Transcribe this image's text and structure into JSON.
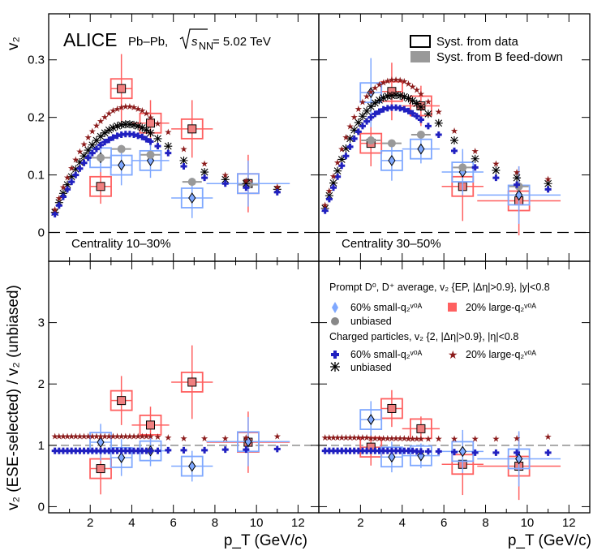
{
  "header": {
    "experiment": "ALICE",
    "system": "Pb–Pb,",
    "energy_sym": "s",
    "energy_sub": "NN",
    "energy_val": "= 5.02 TeV"
  },
  "legend_syst": {
    "data_label": "Syst. from data",
    "bfeed_label": "Syst. from B feed-down"
  },
  "legend_D": {
    "title": "Prompt D⁰, D⁺ average, v₂ {EP, |Δη|>0.9}, |y|<0.8",
    "small": "60% small-q₂ᵛ⁰ᴬ",
    "large": "20% large-q₂ᵛ⁰ᴬ",
    "unbiased": "unbiased"
  },
  "legend_ch": {
    "title": "Charged particles, v₂ {2, |Δη|>0.9}, |η|<0.8",
    "small": "60% small-q₂ᵛ⁰ᴬ",
    "large": "20% large-q₂ᵛ⁰ᴬ",
    "unbiased": "unbiased"
  },
  "axes": {
    "ylabel_top": "v₂",
    "ylabel_bottom": "v₂ (ESE-selected) / v₂ (unbiased)",
    "xlabel": "p_T (GeV/c)"
  },
  "colors": {
    "small": "#2020c0",
    "small_light": "#7fa8ff",
    "large": "#8b1a1a",
    "large_light": "#ff6060",
    "unbiased": "#000000",
    "gray": "#999999"
  },
  "chart_data": [
    {
      "type": "scatter",
      "panel": "top-left",
      "title": "Centrality 10–30%",
      "xlabel": "p_T (GeV/c)",
      "ylabel": "v2",
      "xlim": [
        0,
        13
      ],
      "ylim": [
        -0.05,
        0.38
      ],
      "xticks": [
        2,
        4,
        6,
        8,
        10,
        12
      ],
      "yticks": [
        0,
        0.1,
        0.2,
        0.3
      ],
      "series": [
        {
          "name": "D 20% large-q2",
          "x": [
            2.5,
            3.5,
            4.9,
            6.9,
            9.6
          ],
          "y": [
            0.08,
            0.25,
            0.19,
            0.18,
            0.085
          ],
          "yerr": [
            0.03,
            0.06,
            0.04,
            0.05,
            0.05
          ],
          "xerr": [
            0.5,
            0.5,
            0.9,
            1.0,
            2.0
          ]
        },
        {
          "name": "D 60% small-q2",
          "x": [
            2.5,
            3.5,
            4.9,
            6.9,
            9.6
          ],
          "y": [
            0.13,
            0.117,
            0.125,
            0.06,
            0.085
          ],
          "yerr": [
            0.025,
            0.035,
            0.03,
            0.035,
            0.04
          ],
          "xerr": [
            0.5,
            0.5,
            0.9,
            1.0,
            2.0
          ]
        },
        {
          "name": "D unbiased",
          "x": [
            2.5,
            3.5,
            4.9,
            6.9,
            9.6
          ],
          "y": [
            0.13,
            0.145,
            0.135,
            0.088,
            0.083
          ]
        },
        {
          "name": "Charged unbiased",
          "x": [
            0.3,
            0.5,
            0.7,
            0.9,
            1.1,
            1.3,
            1.5,
            1.7,
            1.9,
            2.1,
            2.3,
            2.5,
            2.7,
            2.9,
            3.1,
            3.3,
            3.5,
            3.7,
            3.9,
            4.1,
            4.3,
            4.5,
            4.7,
            4.9,
            5.25,
            5.75,
            6.5,
            7.5,
            8.5,
            9.5,
            11.0
          ],
          "y": [
            0.035,
            0.052,
            0.068,
            0.083,
            0.097,
            0.11,
            0.122,
            0.133,
            0.143,
            0.152,
            0.16,
            0.167,
            0.173,
            0.178,
            0.182,
            0.185,
            0.187,
            0.188,
            0.188,
            0.187,
            0.185,
            0.182,
            0.178,
            0.173,
            0.163,
            0.15,
            0.125,
            0.105,
            0.092,
            0.085,
            0.075
          ]
        },
        {
          "name": "Charged 60% small-q2",
          "x": [
            0.3,
            0.5,
            0.7,
            0.9,
            1.1,
            1.3,
            1.5,
            1.7,
            1.9,
            2.1,
            2.3,
            2.5,
            2.7,
            2.9,
            3.1,
            3.3,
            3.5,
            3.7,
            3.9,
            4.1,
            4.3,
            4.5,
            4.7,
            4.9,
            5.25,
            5.75,
            6.5,
            7.5,
            8.5,
            9.5,
            11.0
          ],
          "y": [
            0.032,
            0.047,
            0.062,
            0.075,
            0.088,
            0.1,
            0.111,
            0.121,
            0.13,
            0.138,
            0.145,
            0.152,
            0.157,
            0.161,
            0.165,
            0.168,
            0.17,
            0.171,
            0.171,
            0.17,
            0.168,
            0.166,
            0.162,
            0.158,
            0.15,
            0.138,
            0.115,
            0.095,
            0.085,
            0.078,
            0.07
          ]
        },
        {
          "name": "Charged 20% large-q2",
          "x": [
            0.3,
            0.5,
            0.7,
            0.9,
            1.1,
            1.3,
            1.5,
            1.7,
            1.9,
            2.1,
            2.3,
            2.5,
            2.7,
            2.9,
            3.1,
            3.3,
            3.5,
            3.7,
            3.9,
            4.1,
            4.3,
            4.5,
            4.7,
            4.9,
            5.25,
            5.75,
            6.5,
            7.5,
            8.5,
            9.5,
            11.0
          ],
          "y": [
            0.04,
            0.06,
            0.079,
            0.096,
            0.112,
            0.127,
            0.141,
            0.154,
            0.166,
            0.176,
            0.186,
            0.194,
            0.201,
            0.207,
            0.212,
            0.215,
            0.218,
            0.219,
            0.219,
            0.218,
            0.215,
            0.212,
            0.207,
            0.2,
            0.19,
            0.175,
            0.145,
            0.12,
            0.1,
            0.09,
            0.08
          ]
        }
      ]
    },
    {
      "type": "scatter",
      "panel": "top-right",
      "title": "Centrality 30–50%",
      "xlabel": "p_T (GeV/c)",
      "ylabel": "v2",
      "xlim": [
        0,
        13
      ],
      "ylim": [
        -0.05,
        0.38
      ],
      "xticks": [
        2,
        4,
        6,
        8,
        10,
        12
      ],
      "yticks": [
        0,
        0.1,
        0.2,
        0.3
      ],
      "series": [
        {
          "name": "D 20% large-q2",
          "x": [
            2.5,
            3.5,
            4.9,
            6.9,
            9.6
          ],
          "y": [
            0.155,
            0.245,
            0.22,
            0.08,
            0.055
          ],
          "yerr": [
            0.04,
            0.05,
            0.035,
            0.06,
            0.06
          ],
          "xerr": [
            0.5,
            0.5,
            0.9,
            1.0,
            2.0
          ]
        },
        {
          "name": "D 60% small-q2",
          "x": [
            2.5,
            3.5,
            4.9,
            6.9,
            9.6
          ],
          "y": [
            0.243,
            0.125,
            0.145,
            0.105,
            0.065
          ],
          "yerr": [
            0.06,
            0.035,
            0.025,
            0.04,
            0.05
          ],
          "xerr": [
            0.5,
            0.5,
            0.9,
            1.0,
            2.0
          ]
        },
        {
          "name": "D unbiased",
          "x": [
            2.5,
            3.5,
            4.9,
            6.9,
            9.6
          ],
          "y": [
            0.16,
            0.155,
            0.17,
            0.113,
            0.08
          ]
        },
        {
          "name": "Charged unbiased",
          "x": [
            0.3,
            0.5,
            0.7,
            0.9,
            1.1,
            1.3,
            1.5,
            1.7,
            1.9,
            2.1,
            2.3,
            2.5,
            2.7,
            2.9,
            3.1,
            3.3,
            3.5,
            3.7,
            3.9,
            4.1,
            4.3,
            4.5,
            4.7,
            4.9,
            5.25,
            5.75,
            6.5,
            7.5,
            8.5,
            9.5,
            11.0
          ],
          "y": [
            0.042,
            0.064,
            0.086,
            0.107,
            0.127,
            0.146,
            0.163,
            0.178,
            0.191,
            0.202,
            0.211,
            0.219,
            0.225,
            0.23,
            0.234,
            0.237,
            0.238,
            0.239,
            0.238,
            0.236,
            0.233,
            0.229,
            0.224,
            0.218,
            0.206,
            0.19,
            0.16,
            0.128,
            0.108,
            0.095,
            0.085
          ]
        },
        {
          "name": "Charged 60% small-q2",
          "x": [
            0.3,
            0.5,
            0.7,
            0.9,
            1.1,
            1.3,
            1.5,
            1.7,
            1.9,
            2.1,
            2.3,
            2.5,
            2.7,
            2.9,
            3.1,
            3.3,
            3.5,
            3.7,
            3.9,
            4.1,
            4.3,
            4.5,
            4.7,
            4.9,
            5.25,
            5.75,
            6.5,
            7.5,
            8.5,
            9.5,
            11.0
          ],
          "y": [
            0.038,
            0.058,
            0.078,
            0.097,
            0.116,
            0.133,
            0.149,
            0.163,
            0.175,
            0.185,
            0.193,
            0.2,
            0.206,
            0.21,
            0.214,
            0.216,
            0.217,
            0.217,
            0.216,
            0.214,
            0.211,
            0.207,
            0.202,
            0.196,
            0.185,
            0.17,
            0.142,
            0.113,
            0.095,
            0.083,
            0.075
          ]
        },
        {
          "name": "Charged 20% large-q2",
          "x": [
            0.3,
            0.5,
            0.7,
            0.9,
            1.1,
            1.3,
            1.5,
            1.7,
            1.9,
            2.1,
            2.3,
            2.5,
            2.7,
            2.9,
            3.1,
            3.3,
            3.5,
            3.7,
            3.9,
            4.1,
            4.3,
            4.5,
            4.7,
            4.9,
            5.25,
            5.75,
            6.5,
            7.5,
            8.5,
            9.5,
            11.0
          ],
          "y": [
            0.048,
            0.073,
            0.098,
            0.122,
            0.145,
            0.166,
            0.185,
            0.201,
            0.215,
            0.227,
            0.237,
            0.245,
            0.252,
            0.257,
            0.261,
            0.264,
            0.266,
            0.266,
            0.265,
            0.263,
            0.259,
            0.254,
            0.248,
            0.241,
            0.228,
            0.21,
            0.177,
            0.142,
            0.12,
            0.105,
            0.093
          ]
        }
      ]
    },
    {
      "type": "scatter",
      "panel": "bottom-left",
      "title": "",
      "xlabel": "p_T (GeV/c)",
      "ylabel": "v2 (ESE-selected) / v2 (unbiased)",
      "xlim": [
        0,
        13
      ],
      "ylim": [
        -0.1,
        4.0
      ],
      "xticks": [
        2,
        4,
        6,
        8,
        10,
        12
      ],
      "yticks": [
        0,
        1,
        2,
        3
      ],
      "series": [
        {
          "name": "D 20% large-q2",
          "x": [
            2.5,
            3.5,
            4.9,
            6.9,
            9.6
          ],
          "y": [
            0.62,
            1.73,
            1.33,
            2.03,
            1.05
          ],
          "yerr": [
            0.42,
            0.4,
            0.3,
            0.6,
            0.5
          ],
          "xerr": [
            0.5,
            0.5,
            0.9,
            1.0,
            2.0
          ]
        },
        {
          "name": "D 60% small-q2",
          "x": [
            2.5,
            3.5,
            4.9,
            6.9,
            9.6
          ],
          "y": [
            1.05,
            0.8,
            0.91,
            0.66,
            1.06
          ],
          "yerr": [
            0.3,
            0.3,
            0.25,
            0.25,
            0.4
          ],
          "xerr": [
            0.5,
            0.5,
            0.9,
            1.0,
            2.0
          ]
        },
        {
          "name": "Charged 60% small-q2",
          "x": [
            0.3,
            0.5,
            0.7,
            0.9,
            1.1,
            1.3,
            1.5,
            1.7,
            1.9,
            2.1,
            2.3,
            2.5,
            2.7,
            2.9,
            3.1,
            3.3,
            3.5,
            3.7,
            3.9,
            4.1,
            4.3,
            4.5,
            4.7,
            4.9,
            5.25,
            5.75,
            6.5,
            7.5,
            8.5,
            9.5,
            11.0
          ],
          "y": [
            0.91,
            0.91,
            0.91,
            0.91,
            0.91,
            0.91,
            0.91,
            0.91,
            0.91,
            0.91,
            0.91,
            0.91,
            0.91,
            0.91,
            0.91,
            0.91,
            0.91,
            0.91,
            0.91,
            0.91,
            0.91,
            0.91,
            0.91,
            0.91,
            0.91,
            0.92,
            0.92,
            0.92,
            0.93,
            0.93,
            0.94
          ]
        },
        {
          "name": "Charged 20% large-q2",
          "x": [
            0.3,
            0.5,
            0.7,
            0.9,
            1.1,
            1.3,
            1.5,
            1.7,
            1.9,
            2.1,
            2.3,
            2.5,
            2.7,
            2.9,
            3.1,
            3.3,
            3.5,
            3.7,
            3.9,
            4.1,
            4.3,
            4.5,
            4.7,
            4.9,
            5.25,
            5.75,
            6.5,
            7.5,
            8.5,
            9.5,
            11.0
          ],
          "y": [
            1.15,
            1.15,
            1.15,
            1.15,
            1.15,
            1.15,
            1.15,
            1.15,
            1.15,
            1.15,
            1.15,
            1.15,
            1.15,
            1.15,
            1.15,
            1.15,
            1.15,
            1.15,
            1.15,
            1.15,
            1.15,
            1.15,
            1.15,
            1.15,
            1.14,
            1.13,
            1.12,
            1.12,
            1.12,
            1.13,
            1.15
          ]
        }
      ]
    },
    {
      "type": "scatter",
      "panel": "bottom-right",
      "title": "",
      "xlabel": "p_T (GeV/c)",
      "ylabel": "v2 (ESE-selected) / v2 (unbiased)",
      "xlim": [
        0,
        13
      ],
      "ylim": [
        -0.1,
        4.0
      ],
      "xticks": [
        2,
        4,
        6,
        8,
        10,
        12
      ],
      "yticks": [
        0,
        1,
        2,
        3
      ],
      "series": [
        {
          "name": "D 20% large-q2",
          "x": [
            2.5,
            3.5,
            4.9,
            6.9,
            9.6
          ],
          "y": [
            0.97,
            1.6,
            1.27,
            0.69,
            0.66
          ],
          "yerr": [
            0.3,
            0.3,
            0.2,
            0.5,
            0.55
          ],
          "xerr": [
            0.5,
            0.5,
            0.9,
            1.0,
            2.0
          ]
        },
        {
          "name": "D 60% small-q2",
          "x": [
            2.5,
            3.5,
            4.9,
            6.9,
            9.6
          ],
          "y": [
            1.42,
            0.81,
            0.83,
            0.9,
            0.78
          ],
          "yerr": [
            0.3,
            0.25,
            0.2,
            0.35,
            0.45
          ],
          "xerr": [
            0.5,
            0.5,
            0.9,
            1.0,
            2.0
          ]
        },
        {
          "name": "Charged 60% small-q2",
          "x": [
            0.3,
            0.5,
            0.7,
            0.9,
            1.1,
            1.3,
            1.5,
            1.7,
            1.9,
            2.1,
            2.3,
            2.5,
            2.7,
            2.9,
            3.1,
            3.3,
            3.5,
            3.7,
            3.9,
            4.1,
            4.3,
            4.5,
            4.7,
            4.9,
            5.25,
            5.75,
            6.5,
            7.5,
            8.5,
            9.5,
            11.0
          ],
          "y": [
            0.91,
            0.91,
            0.91,
            0.91,
            0.91,
            0.91,
            0.91,
            0.91,
            0.91,
            0.91,
            0.91,
            0.91,
            0.91,
            0.91,
            0.91,
            0.91,
            0.91,
            0.91,
            0.91,
            0.91,
            0.91,
            0.91,
            0.9,
            0.9,
            0.9,
            0.9,
            0.89,
            0.88,
            0.88,
            0.88,
            0.88
          ]
        },
        {
          "name": "Charged 20% large-q2",
          "x": [
            0.3,
            0.5,
            0.7,
            0.9,
            1.1,
            1.3,
            1.5,
            1.7,
            1.9,
            2.1,
            2.3,
            2.5,
            2.7,
            2.9,
            3.1,
            3.3,
            3.5,
            3.7,
            3.9,
            4.1,
            4.3,
            4.5,
            4.7,
            4.9,
            5.25,
            5.75,
            6.5,
            7.5,
            8.5,
            9.5,
            11.0
          ],
          "y": [
            1.13,
            1.13,
            1.13,
            1.13,
            1.13,
            1.13,
            1.13,
            1.13,
            1.13,
            1.13,
            1.13,
            1.12,
            1.12,
            1.12,
            1.12,
            1.12,
            1.12,
            1.12,
            1.12,
            1.12,
            1.11,
            1.11,
            1.11,
            1.11,
            1.11,
            1.11,
            1.11,
            1.11,
            1.11,
            1.12,
            1.14
          ]
        }
      ]
    }
  ]
}
